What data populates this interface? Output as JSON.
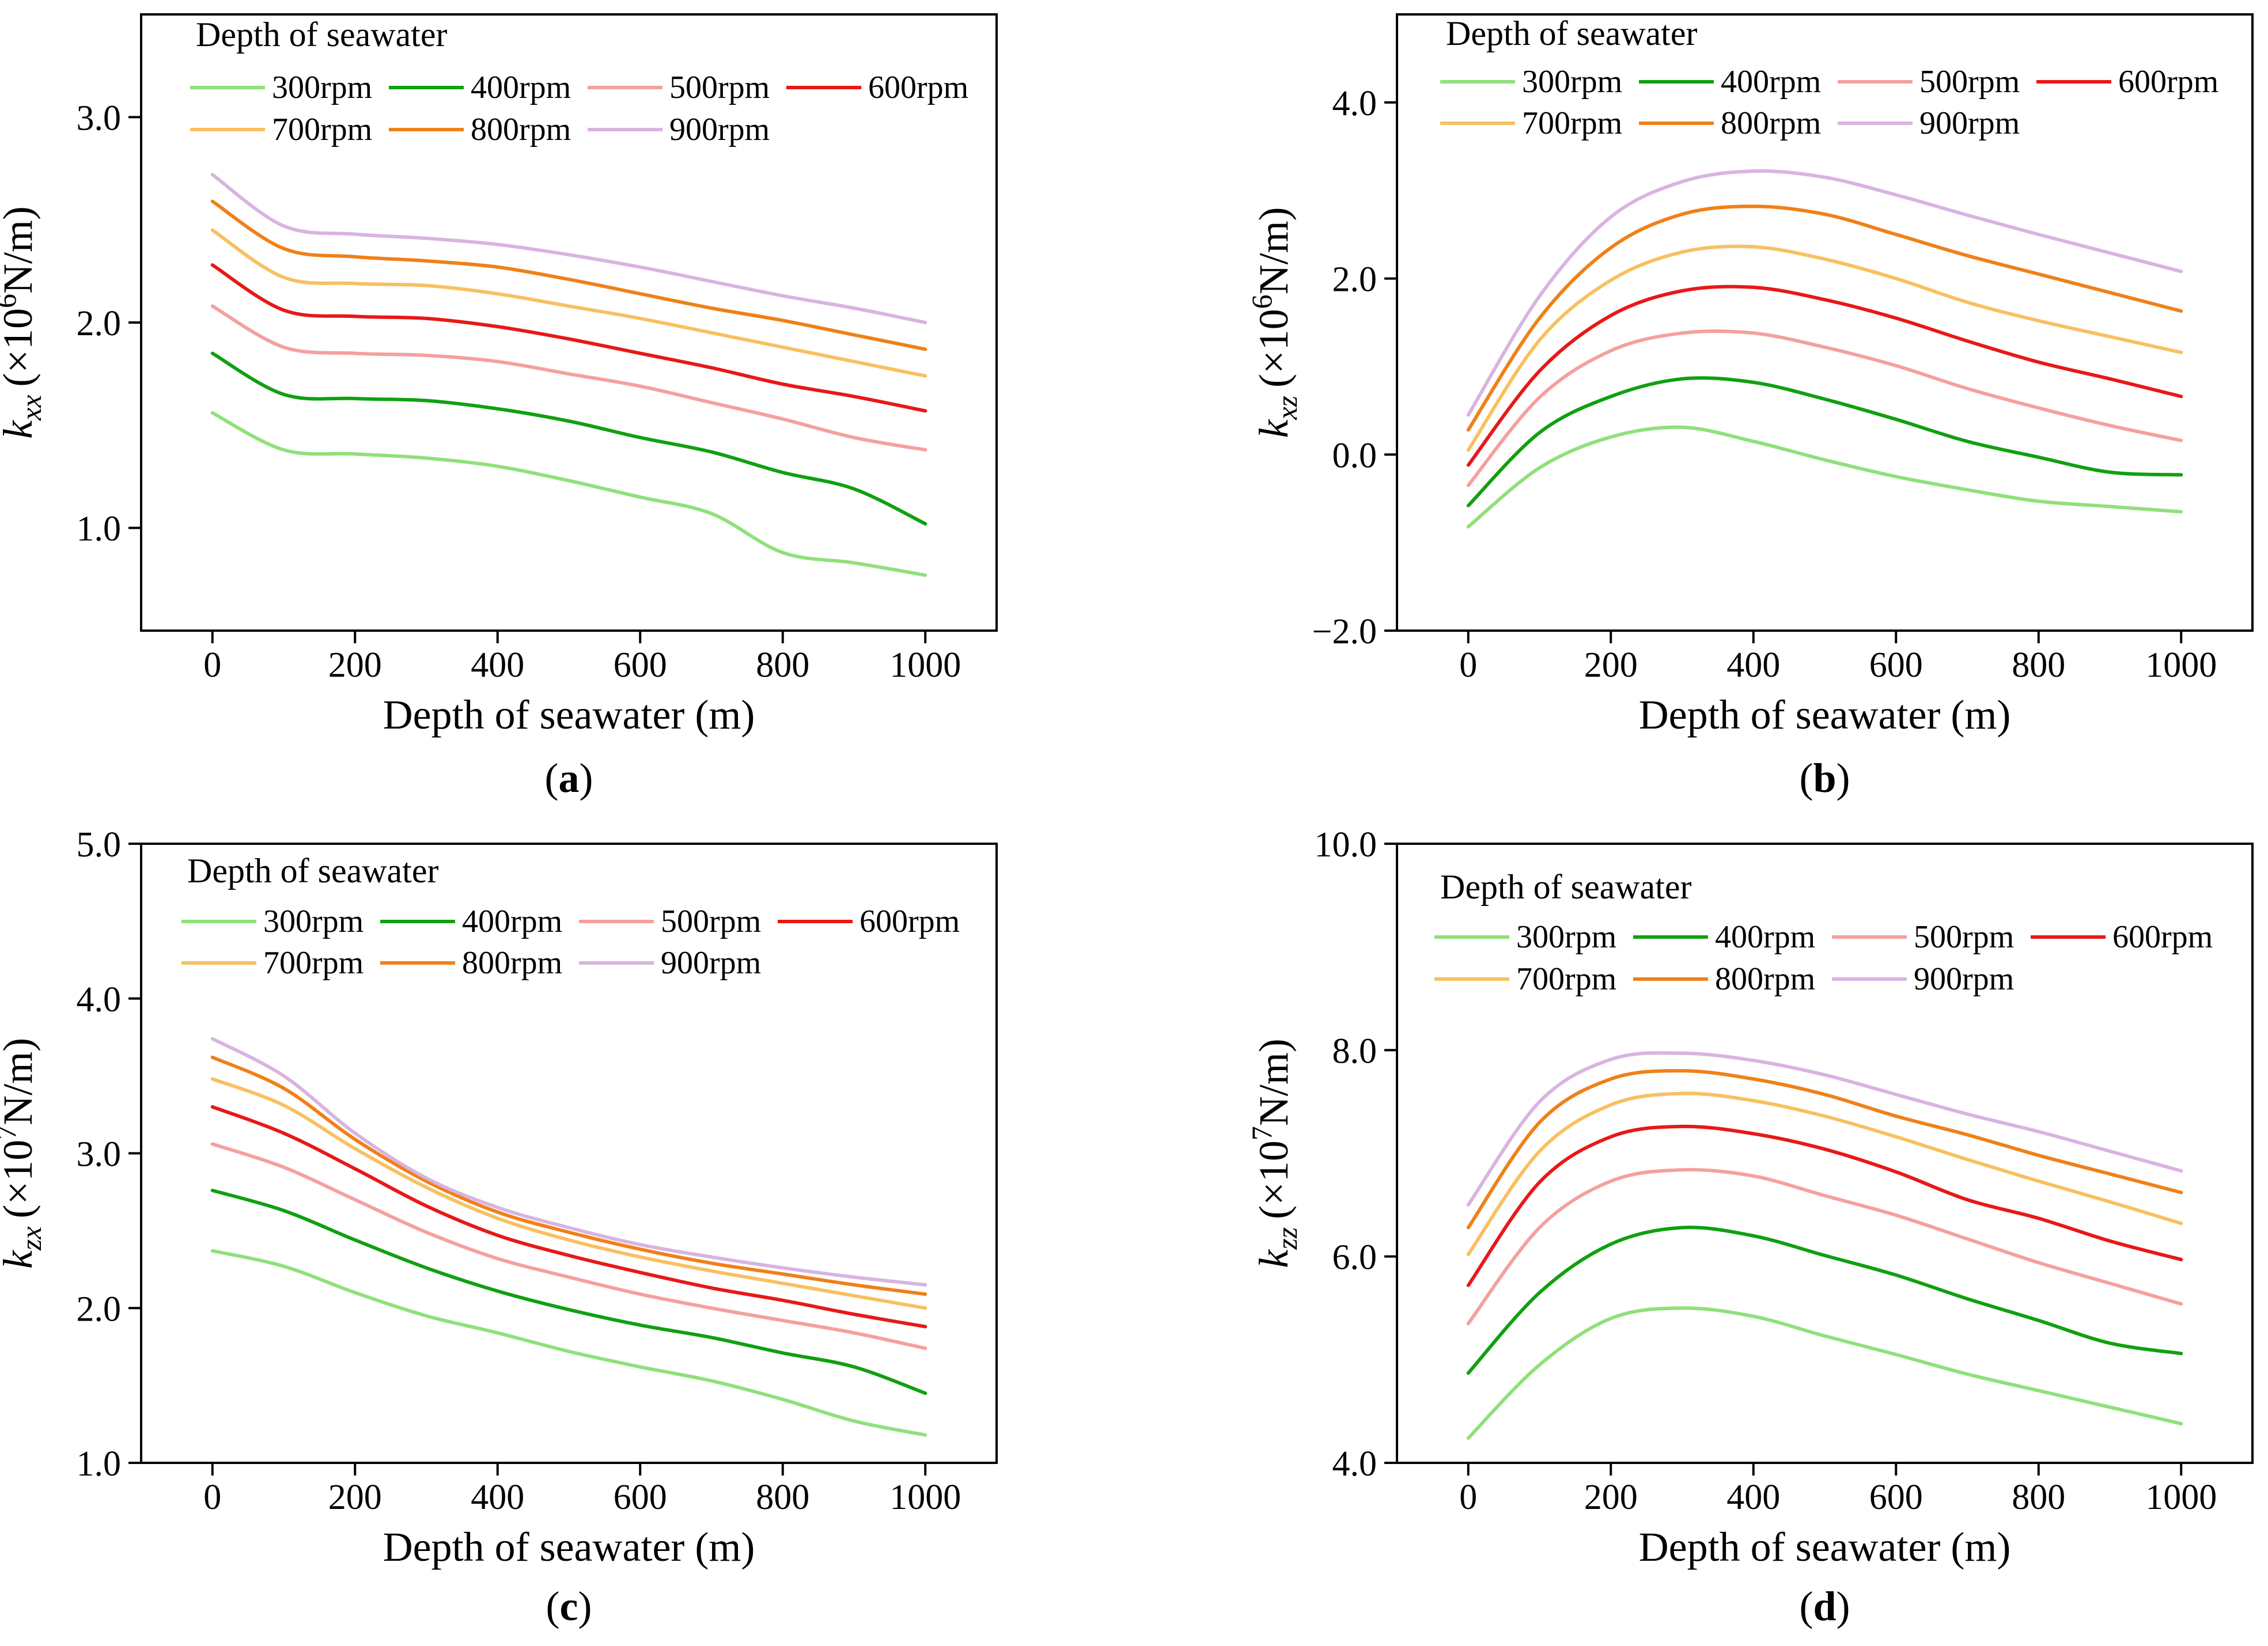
{
  "figure": {
    "series_names": [
      "300rpm",
      "400rpm",
      "500rpm",
      "600rpm",
      "700rpm",
      "800rpm",
      "900rpm"
    ],
    "series_colors": [
      "#90e07a",
      "#10a010",
      "#f4a0a0",
      "#e81818",
      "#f8c060",
      "#f08018",
      "#d8b4e0"
    ],
    "x": [
      0,
      100,
      200,
      300,
      400,
      500,
      600,
      700,
      800,
      900,
      1000
    ],
    "xticks": [
      0,
      200,
      400,
      600,
      800,
      1000
    ],
    "xlim": [
      -100,
      1100
    ]
  },
  "chart_data": [
    {
      "panel": "(a)",
      "type": "line",
      "title": "",
      "legend_title": "Depth of seawater",
      "xlabel": "Depth of seawater (m)",
      "ylabel_symbol": "k",
      "ylabel_sub": "xx",
      "ylabel_pre": "(×10",
      "ylabel_exp": "6",
      "ylabel_post": "N/m)",
      "ylim": [
        0.5,
        3.5
      ],
      "yticks": [
        "1.0",
        "2.0",
        "3.0"
      ],
      "series": [
        {
          "name": "300rpm",
          "values": [
            1.56,
            1.38,
            1.36,
            1.34,
            1.3,
            1.23,
            1.15,
            1.07,
            0.88,
            0.83,
            0.77
          ]
        },
        {
          "name": "400rpm",
          "values": [
            1.85,
            1.65,
            1.63,
            1.62,
            1.58,
            1.52,
            1.44,
            1.37,
            1.27,
            1.19,
            1.02
          ]
        },
        {
          "name": "500rpm",
          "values": [
            2.08,
            1.88,
            1.85,
            1.84,
            1.81,
            1.75,
            1.69,
            1.61,
            1.53,
            1.44,
            1.38
          ]
        },
        {
          "name": "600rpm",
          "values": [
            2.28,
            2.06,
            2.03,
            2.02,
            1.98,
            1.92,
            1.85,
            1.78,
            1.7,
            1.64,
            1.57
          ]
        },
        {
          "name": "700rpm",
          "values": [
            2.45,
            2.22,
            2.19,
            2.18,
            2.14,
            2.08,
            2.02,
            1.95,
            1.88,
            1.81,
            1.74
          ]
        },
        {
          "name": "800rpm",
          "values": [
            2.59,
            2.36,
            2.32,
            2.3,
            2.27,
            2.21,
            2.14,
            2.07,
            2.01,
            1.94,
            1.87
          ]
        },
        {
          "name": "900rpm",
          "values": [
            2.72,
            2.47,
            2.43,
            2.41,
            2.38,
            2.33,
            2.27,
            2.2,
            2.13,
            2.07,
            2.0
          ]
        }
      ]
    },
    {
      "panel": "(b)",
      "type": "line",
      "title": "",
      "legend_title": "Depth of seawater",
      "xlabel": "Depth of seawater (m)",
      "ylabel_symbol": "k",
      "ylabel_sub": "xz",
      "ylabel_pre": "(×10",
      "ylabel_exp": "6",
      "ylabel_post": "N/m)",
      "ylim": [
        -2.0,
        5.0
      ],
      "yticks": [
        "−2.0",
        "0.0",
        "2.0",
        "4.0"
      ],
      "series": [
        {
          "name": "300rpm",
          "values": [
            -0.82,
            -0.15,
            0.2,
            0.31,
            0.15,
            -0.06,
            -0.25,
            -0.4,
            -0.53,
            -0.59,
            -0.65
          ]
        },
        {
          "name": "400rpm",
          "values": [
            -0.58,
            0.25,
            0.66,
            0.86,
            0.82,
            0.63,
            0.4,
            0.15,
            -0.03,
            -0.2,
            -0.23
          ]
        },
        {
          "name": "500rpm",
          "values": [
            -0.35,
            0.65,
            1.18,
            1.38,
            1.38,
            1.22,
            1.01,
            0.75,
            0.53,
            0.33,
            0.16
          ]
        },
        {
          "name": "600rpm",
          "values": [
            -0.12,
            0.95,
            1.58,
            1.86,
            1.9,
            1.76,
            1.55,
            1.29,
            1.05,
            0.86,
            0.66
          ]
        },
        {
          "name": "700rpm",
          "values": [
            0.05,
            1.3,
            1.98,
            2.3,
            2.36,
            2.22,
            2.0,
            1.73,
            1.52,
            1.34,
            1.16
          ]
        },
        {
          "name": "800rpm",
          "values": [
            0.28,
            1.55,
            2.35,
            2.73,
            2.82,
            2.73,
            2.5,
            2.26,
            2.05,
            1.84,
            1.63
          ]
        },
        {
          "name": "900rpm",
          "values": [
            0.45,
            1.8,
            2.7,
            3.1,
            3.22,
            3.15,
            2.95,
            2.72,
            2.5,
            2.29,
            2.08
          ]
        }
      ]
    },
    {
      "panel": "(c)",
      "type": "line",
      "title": "",
      "legend_title": "Depth of seawater",
      "xlabel": "Depth of seawater (m)",
      "ylabel_symbol": "k",
      "ylabel_sub": "zx",
      "ylabel_pre": "(×10",
      "ylabel_exp": "7",
      "ylabel_post": "N/m)",
      "ylim": [
        1.0,
        5.0
      ],
      "yticks": [
        "1.0",
        "2.0",
        "3.0",
        "4.0",
        "5.0"
      ],
      "series": [
        {
          "name": "300rpm",
          "values": [
            2.37,
            2.27,
            2.1,
            1.95,
            1.84,
            1.72,
            1.62,
            1.53,
            1.41,
            1.27,
            1.18
          ]
        },
        {
          "name": "400rpm",
          "values": [
            2.76,
            2.63,
            2.44,
            2.26,
            2.11,
            1.99,
            1.89,
            1.81,
            1.71,
            1.62,
            1.45
          ]
        },
        {
          "name": "500rpm",
          "values": [
            3.06,
            2.91,
            2.7,
            2.49,
            2.32,
            2.2,
            2.09,
            2.0,
            1.92,
            1.84,
            1.74
          ]
        },
        {
          "name": "600rpm",
          "values": [
            3.3,
            3.13,
            2.9,
            2.66,
            2.47,
            2.34,
            2.23,
            2.13,
            2.05,
            1.96,
            1.88
          ]
        },
        {
          "name": "700rpm",
          "values": [
            3.48,
            3.31,
            3.03,
            2.78,
            2.58,
            2.44,
            2.33,
            2.24,
            2.16,
            2.08,
            2.0
          ]
        },
        {
          "name": "800rpm",
          "values": [
            3.62,
            3.42,
            3.09,
            2.82,
            2.62,
            2.49,
            2.38,
            2.29,
            2.22,
            2.15,
            2.09
          ]
        },
        {
          "name": "900rpm",
          "values": [
            3.74,
            3.5,
            3.13,
            2.84,
            2.65,
            2.52,
            2.41,
            2.33,
            2.26,
            2.2,
            2.15
          ]
        }
      ]
    },
    {
      "panel": "(d)",
      "type": "line",
      "title": "",
      "legend_title": "Depth of seawater",
      "xlabel": "Depth of seawater (m)",
      "ylabel_symbol": "k",
      "ylabel_sub": "zz",
      "ylabel_pre": "(×10",
      "ylabel_exp": "7",
      "ylabel_post": "N/m)",
      "ylim": [
        4.0,
        10.0
      ],
      "yticks": [
        "4.0",
        "6.0",
        "8.0",
        "10.0"
      ],
      "series": [
        {
          "name": "300rpm",
          "values": [
            4.24,
            4.95,
            5.4,
            5.5,
            5.42,
            5.23,
            5.05,
            4.86,
            4.7,
            4.54,
            4.38
          ]
        },
        {
          "name": "400rpm",
          "values": [
            4.87,
            5.65,
            6.12,
            6.28,
            6.2,
            6.01,
            5.82,
            5.59,
            5.38,
            5.16,
            5.06
          ]
        },
        {
          "name": "500rpm",
          "values": [
            5.35,
            6.28,
            6.73,
            6.84,
            6.78,
            6.59,
            6.4,
            6.17,
            5.94,
            5.74,
            5.54
          ]
        },
        {
          "name": "600rpm",
          "values": [
            5.72,
            6.72,
            7.16,
            7.26,
            7.19,
            7.04,
            6.82,
            6.55,
            6.37,
            6.15,
            5.97
          ]
        },
        {
          "name": "700rpm",
          "values": [
            6.02,
            7.02,
            7.47,
            7.58,
            7.51,
            7.36,
            7.16,
            6.94,
            6.73,
            6.53,
            6.32
          ]
        },
        {
          "name": "800rpm",
          "values": [
            6.28,
            7.3,
            7.72,
            7.8,
            7.72,
            7.57,
            7.36,
            7.18,
            6.98,
            6.8,
            6.62
          ]
        },
        {
          "name": "900rpm",
          "values": [
            6.5,
            7.5,
            7.91,
            7.97,
            7.9,
            7.76,
            7.57,
            7.38,
            7.21,
            7.02,
            6.83
          ]
        }
      ]
    }
  ]
}
